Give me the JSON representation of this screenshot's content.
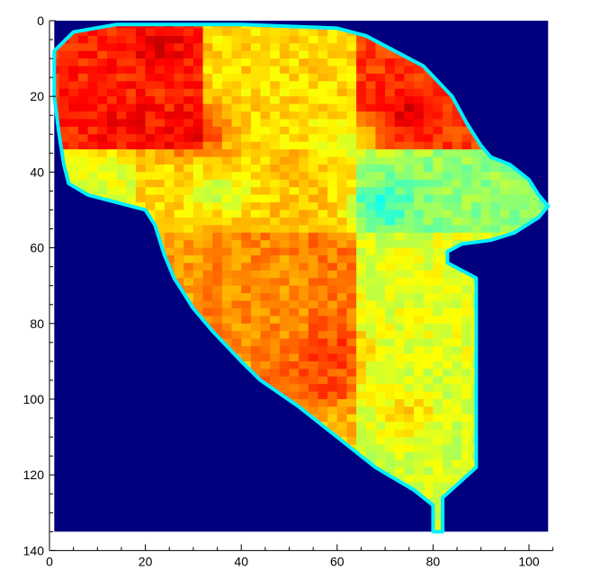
{
  "chart_data": {
    "type": "heatmap",
    "title": "",
    "xlabel": "",
    "ylabel": "",
    "xlim": [
      0,
      105
    ],
    "ylim": [
      140,
      0
    ],
    "y_inverted": true,
    "x_ticks": [
      0,
      20,
      40,
      60,
      80,
      100
    ],
    "x_tick_labels": [
      "0",
      "20",
      "40",
      "60",
      "80",
      "100"
    ],
    "y_ticks": [
      0,
      20,
      40,
      60,
      80,
      100,
      120,
      140
    ],
    "y_tick_labels": [
      "0",
      "20",
      "40",
      "60",
      "80",
      "100",
      "120",
      "140"
    ],
    "grid": false,
    "colormap": "jet",
    "background_color": "#00007f",
    "image_extent": {
      "x": [
        1,
        104
      ],
      "y": [
        0,
        135
      ]
    },
    "field_boundary": [
      [
        5,
        3
      ],
      [
        14,
        1
      ],
      [
        40,
        1
      ],
      [
        60,
        2
      ],
      [
        66,
        4
      ],
      [
        72,
        8
      ],
      [
        78,
        12
      ],
      [
        84,
        20
      ],
      [
        87,
        27
      ],
      [
        90,
        33
      ],
      [
        92,
        36
      ],
      [
        96,
        38
      ],
      [
        100,
        42
      ],
      [
        102,
        46
      ],
      [
        104,
        49
      ],
      [
        102,
        52
      ],
      [
        97,
        56
      ],
      [
        92,
        58
      ],
      [
        86,
        59
      ],
      [
        83,
        61
      ],
      [
        83,
        64
      ],
      [
        86,
        66
      ],
      [
        89,
        68
      ],
      [
        89,
        118
      ],
      [
        82,
        126
      ],
      [
        82,
        135
      ],
      [
        80,
        135
      ],
      [
        80,
        128
      ],
      [
        76,
        124
      ],
      [
        68,
        118
      ],
      [
        60,
        110
      ],
      [
        52,
        102
      ],
      [
        44,
        95
      ],
      [
        40,
        90
      ],
      [
        34,
        82
      ],
      [
        30,
        76
      ],
      [
        26,
        68
      ],
      [
        24,
        62
      ],
      [
        22,
        54
      ],
      [
        20,
        50
      ],
      [
        14,
        48
      ],
      [
        8,
        46
      ],
      [
        4,
        43
      ],
      [
        3,
        38
      ],
      [
        2,
        30
      ],
      [
        1,
        20
      ],
      [
        1,
        8
      ]
    ],
    "zones": [
      {
        "rows": [
          0,
          35
        ],
        "cols": [
          0,
          33
        ],
        "value": 0.84
      },
      {
        "rows": [
          0,
          35
        ],
        "cols": [
          33,
          65
        ],
        "value": 0.66
      },
      {
        "rows": [
          0,
          35
        ],
        "cols": [
          65,
          105
        ],
        "value": 0.82
      },
      {
        "rows": [
          35,
          57
        ],
        "cols": [
          0,
          18
        ],
        "value": 0.6
      },
      {
        "rows": [
          35,
          57
        ],
        "cols": [
          18,
          33
        ],
        "value": 0.66
      },
      {
        "rows": [
          35,
          57
        ],
        "cols": [
          33,
          65
        ],
        "value": 0.68
      },
      {
        "rows": [
          35,
          57
        ],
        "cols": [
          65,
          105
        ],
        "value": 0.52
      },
      {
        "rows": [
          57,
          90
        ],
        "cols": [
          0,
          33
        ],
        "value": 0.72
      },
      {
        "rows": [
          57,
          90
        ],
        "cols": [
          33,
          55
        ],
        "value": 0.74
      },
      {
        "rows": [
          57,
          90
        ],
        "cols": [
          55,
          65
        ],
        "value": 0.76
      },
      {
        "rows": [
          57,
          90
        ],
        "cols": [
          65,
          105
        ],
        "value": 0.6
      },
      {
        "rows": [
          90,
          100
        ],
        "cols": [
          0,
          43
        ],
        "value": 0.62
      },
      {
        "rows": [
          90,
          100
        ],
        "cols": [
          43,
          65
        ],
        "value": 0.76
      },
      {
        "rows": [
          90,
          100
        ],
        "cols": [
          65,
          105
        ],
        "value": 0.58
      },
      {
        "rows": [
          100,
          140
        ],
        "cols": [
          0,
          65
        ],
        "value": 0.68
      },
      {
        "rows": [
          100,
          140
        ],
        "cols": [
          65,
          105
        ],
        "value": 0.58
      }
    ],
    "hotspots": [
      {
        "x": 22,
        "y": 6,
        "value": 0.9
      },
      {
        "x": 16,
        "y": 28,
        "value": 0.88
      },
      {
        "x": 30,
        "y": 29,
        "value": 0.89
      },
      {
        "x": 74,
        "y": 25,
        "value": 0.9
      },
      {
        "x": 59,
        "y": 88,
        "value": 0.82
      },
      {
        "x": 57,
        "y": 98,
        "value": 0.8
      },
      {
        "x": 70,
        "y": 49,
        "value": 0.42
      },
      {
        "x": 36,
        "y": 45,
        "value": 0.58
      },
      {
        "x": 62,
        "y": 32,
        "value": 0.6
      },
      {
        "x": 75,
        "y": 104,
        "value": 0.66
      },
      {
        "x": 48,
        "y": 112,
        "value": 0.74
      }
    ]
  }
}
